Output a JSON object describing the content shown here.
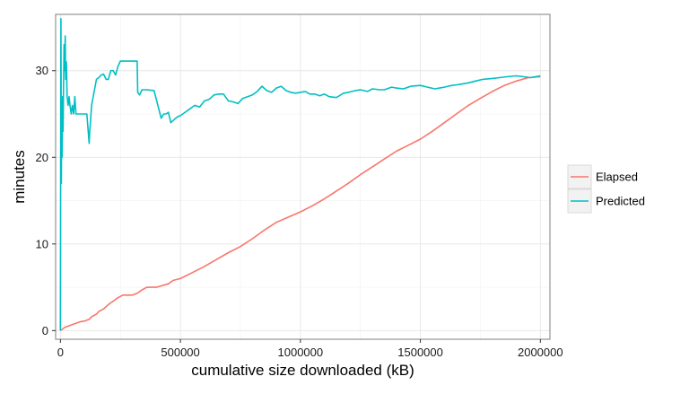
{
  "chart_data": {
    "type": "line",
    "title": "",
    "xlabel": "cumulative size downloaded (kB)",
    "ylabel": "minutes",
    "xlim": [
      -20000,
      2040000
    ],
    "ylim": [
      -1,
      36.5
    ],
    "x_ticks": [
      0,
      500000,
      1000000,
      1500000,
      2000000
    ],
    "x_tick_labels": [
      "0",
      "500000",
      "1000000",
      "1500000",
      "2000000"
    ],
    "y_ticks": [
      0,
      10,
      20,
      30
    ],
    "y_tick_labels": [
      "0",
      "10",
      "20",
      "30"
    ],
    "grid": true,
    "legend_position": "right",
    "series": [
      {
        "name": "Elapsed",
        "color": "#f8766d",
        "x": [
          0,
          10000,
          20000,
          40000,
          60000,
          80000,
          100000,
          120000,
          130000,
          150000,
          160000,
          180000,
          200000,
          220000,
          240000,
          260000,
          300000,
          320000,
          340000,
          360000,
          400000,
          450000,
          470000,
          500000,
          550000,
          600000,
          650000,
          700000,
          750000,
          800000,
          850000,
          900000,
          950000,
          1000000,
          1050000,
          1100000,
          1150000,
          1200000,
          1250000,
          1300000,
          1350000,
          1400000,
          1450000,
          1500000,
          1550000,
          1600000,
          1650000,
          1700000,
          1750000,
          1800000,
          1850000,
          1900000,
          1950000,
          2000000
        ],
        "y": [
          0,
          0.2,
          0.4,
          0.6,
          0.8,
          1.0,
          1.1,
          1.3,
          1.6,
          1.9,
          2.2,
          2.5,
          3.0,
          3.4,
          3.8,
          4.1,
          4.1,
          4.3,
          4.7,
          5.0,
          5.0,
          5.4,
          5.8,
          6.0,
          6.7,
          7.4,
          8.2,
          9.0,
          9.7,
          10.6,
          11.6,
          12.5,
          13.1,
          13.7,
          14.4,
          15.2,
          16.1,
          17.0,
          18.0,
          18.9,
          19.8,
          20.7,
          21.4,
          22.1,
          23.0,
          24.0,
          25.0,
          26.0,
          26.8,
          27.6,
          28.3,
          28.8,
          29.2,
          29.3
        ]
      },
      {
        "name": "Predicted",
        "color": "#00bfc4",
        "x": [
          0,
          2000,
          4000,
          5000,
          7000,
          9000,
          11000,
          13000,
          15000,
          17000,
          20000,
          22000,
          25000,
          28000,
          32000,
          36000,
          40000,
          45000,
          50000,
          55000,
          60000,
          65000,
          70000,
          75000,
          80000,
          90000,
          100000,
          110000,
          120000,
          122000,
          125000,
          130000,
          140000,
          150000,
          160000,
          170000,
          180000,
          190000,
          200000,
          210000,
          220000,
          230000,
          240000,
          250000,
          270000,
          300000,
          320000,
          322000,
          330000,
          340000,
          360000,
          390000,
          420000,
          430000,
          440000,
          450000,
          460000,
          480000,
          490000,
          500000,
          520000,
          540000,
          560000,
          580000,
          600000,
          620000,
          640000,
          660000,
          680000,
          700000,
          720000,
          740000,
          760000,
          780000,
          800000,
          820000,
          840000,
          860000,
          880000,
          900000,
          920000,
          940000,
          960000,
          980000,
          1000000,
          1020000,
          1040000,
          1060000,
          1080000,
          1100000,
          1120000,
          1150000,
          1180000,
          1200000,
          1230000,
          1250000,
          1280000,
          1300000,
          1330000,
          1350000,
          1380000,
          1400000,
          1430000,
          1460000,
          1500000,
          1530000,
          1560000,
          1580000,
          1600000,
          1630000,
          1660000,
          1700000,
          1730000,
          1760000,
          1800000,
          1830000,
          1860000,
          1900000,
          1930000,
          1960000,
          2000000
        ],
        "y": [
          0,
          36,
          17,
          25,
          20,
          27,
          23,
          28,
          33,
          30,
          34,
          29,
          31,
          27,
          26,
          27,
          26,
          25,
          26,
          25,
          27,
          25,
          25,
          25,
          25,
          25,
          25,
          25,
          21.6,
          23,
          24,
          26,
          27.5,
          29,
          29.2,
          29.5,
          29.6,
          29,
          29,
          30,
          30,
          29.5,
          30.5,
          31.1,
          31.1,
          31.1,
          31.1,
          27.5,
          27.2,
          27.8,
          27.8,
          27.7,
          24.5,
          25,
          25,
          25.2,
          24,
          24.5,
          24.7,
          24.8,
          25.2,
          25.6,
          26,
          25.8,
          26.5,
          26.7,
          27.2,
          27.3,
          27.3,
          26.5,
          26.4,
          26.2,
          26.8,
          27,
          27.2,
          27.6,
          28.2,
          27.7,
          27.5,
          28,
          28.2,
          27.7,
          27.5,
          27.4,
          27.5,
          27.6,
          27.3,
          27.3,
          27.1,
          27.3,
          27.0,
          26.9,
          27.4,
          27.5,
          27.7,
          27.8,
          27.6,
          27.9,
          27.8,
          27.8,
          28.1,
          28.0,
          27.9,
          28.2,
          28.3,
          28.1,
          27.9,
          28.0,
          28.1,
          28.3,
          28.4,
          28.6,
          28.8,
          29.0,
          29.1,
          29.2,
          29.3,
          29.4,
          29.3,
          29.2,
          29.4
        ]
      }
    ]
  }
}
